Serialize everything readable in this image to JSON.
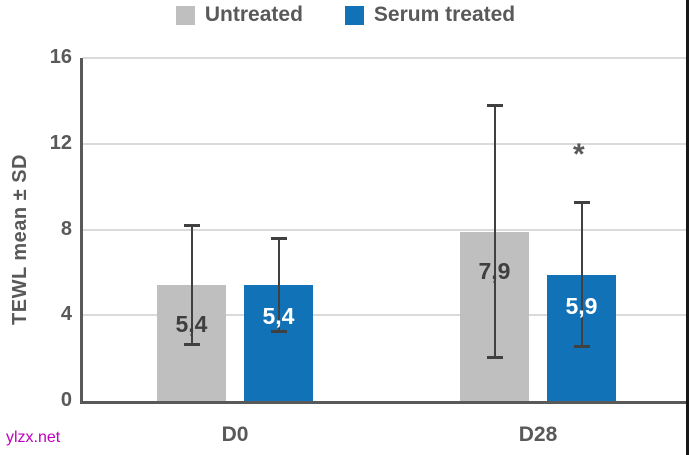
{
  "watermark": "ylzx.net",
  "chart_data": {
    "type": "bar",
    "title": "",
    "ylabel": "TEWL mean ± SD",
    "xlabel": "",
    "categories": [
      "D0",
      "D28"
    ],
    "series": [
      {
        "name": "Untreated",
        "color": "#bfbfbf",
        "label_color": "#3f3f3f",
        "values": [
          5.4,
          7.9
        ],
        "labels": [
          "5,4",
          "7,9"
        ],
        "sd": [
          2.8,
          5.9
        ]
      },
      {
        "name": "Serum treated",
        "color": "#1272b8",
        "label_color": "#ffffff",
        "values": [
          5.4,
          5.9
        ],
        "labels": [
          "5,4",
          "5,9"
        ],
        "sd": [
          2.2,
          3.4
        ]
      }
    ],
    "ylim": [
      0,
      16
    ],
    "yticks": [
      0,
      4,
      8,
      12,
      16
    ],
    "grid": true,
    "legend_position": "top",
    "annotations": [
      {
        "text": "*",
        "category_index": 1,
        "series_index": 1,
        "y_value": 11.7
      }
    ]
  }
}
